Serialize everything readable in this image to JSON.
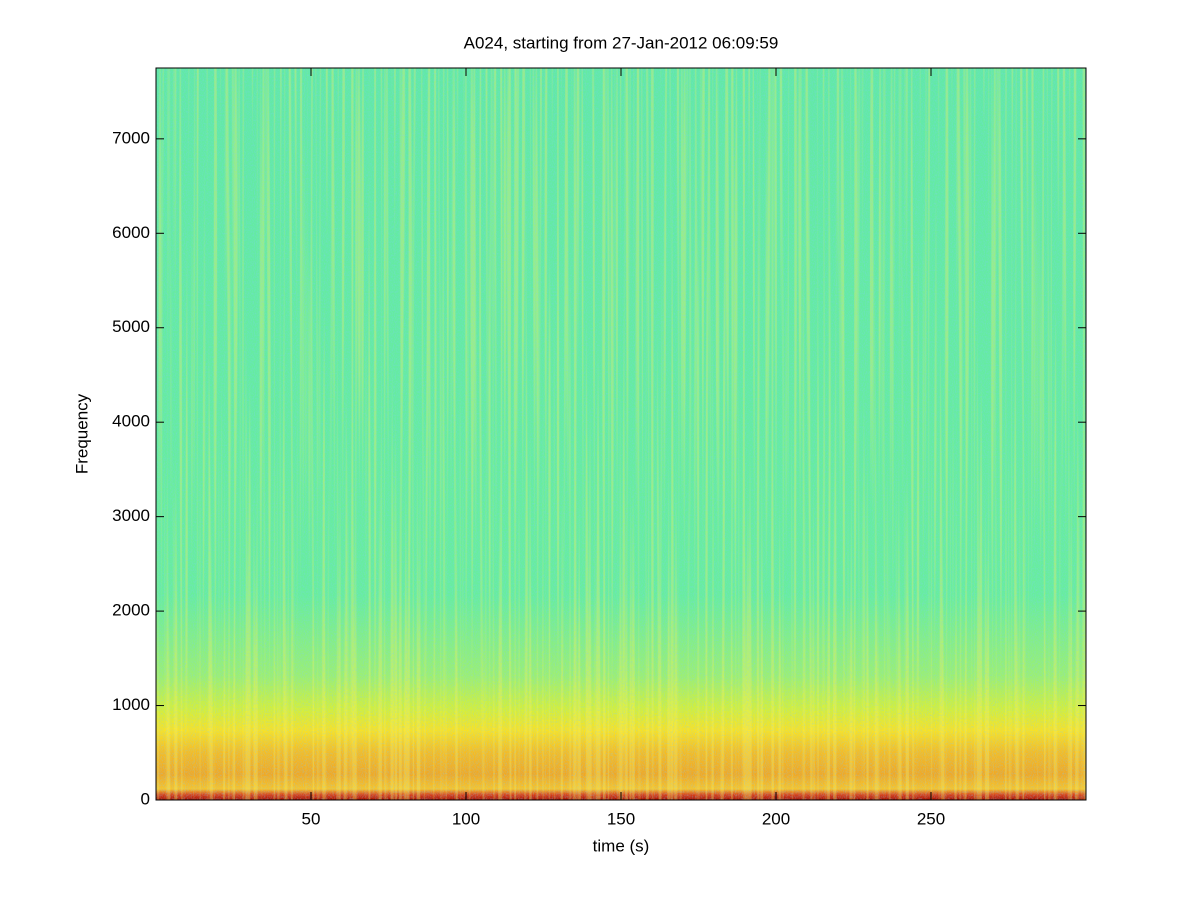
{
  "chart_data": {
    "type": "spectrogram",
    "title": "A024, starting from 27-Jan-2012 06:09:59",
    "x_label": "time (s)",
    "y_label": "Frequency",
    "xlim": [
      0,
      300
    ],
    "ylim": [
      0,
      7750
    ],
    "xticks": [
      50,
      100,
      150,
      200,
      250
    ],
    "yticks": [
      0,
      1000,
      2000,
      3000,
      4000,
      5000,
      6000,
      7000
    ]
  }
}
